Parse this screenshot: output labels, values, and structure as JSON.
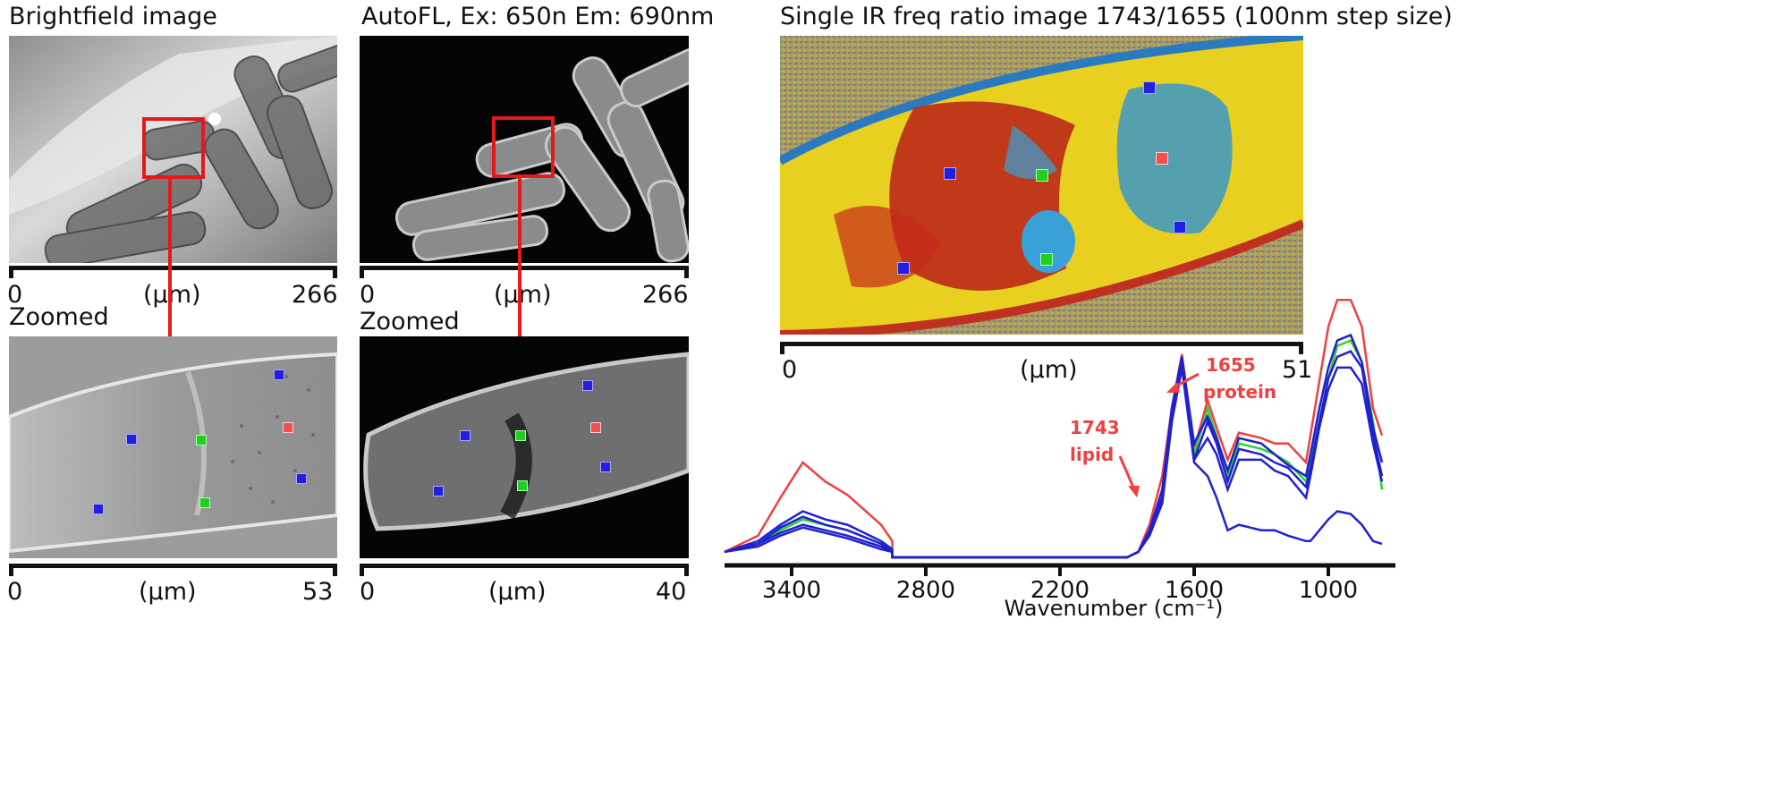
{
  "panels": {
    "brightfield": {
      "title": "Brightfield image",
      "scale_start": "0",
      "scale_unit": "(µm)",
      "scale_end": "266"
    },
    "autofl": {
      "title": "AutoFL, Ex: 650n Em: 690nm",
      "scale_start": "0",
      "scale_unit": "(µm)",
      "scale_end": "266"
    },
    "brightfield_zoom": {
      "title": "Zoomed",
      "scale_start": "0",
      "scale_unit": "(µm)",
      "scale_end": "53"
    },
    "autofl_zoom": {
      "title": "Zoomed",
      "scale_start": "0",
      "scale_unit": "(µm)",
      "scale_end": "40"
    },
    "ir_ratio": {
      "title": "Single IR freq ratio image 1743/1655 (100nm step size)",
      "scale_start": "0",
      "scale_unit": "(µm)",
      "scale_end": "51"
    }
  },
  "colors": {
    "red_box": "#e41a1a",
    "marker_blue": "#2020e0",
    "marker_green": "#20d020",
    "marker_red": "#f05050",
    "spectrum_red": "#f04040",
    "spectrum_green": "#30d030",
    "spectrum_blue": "#2020d0"
  },
  "chart_data": {
    "type": "line",
    "title": "",
    "xlabel": "Wavenumber (cm⁻¹)",
    "ylabel": "",
    "x_reversed": true,
    "xlim": [
      3700,
      700
    ],
    "x_ticks": [
      "3400",
      "2800",
      "2200",
      "1600",
      "1000"
    ],
    "annotations": [
      {
        "label_line1": "1743",
        "label_line2": "lipid",
        "x": 1743
      },
      {
        "label_line1": "1655",
        "label_line2": "protein",
        "x": 1655
      }
    ],
    "series": [
      {
        "color": "red",
        "x": [
          3700,
          3550,
          3450,
          3350,
          3250,
          3150,
          3000,
          2950,
          2950,
          1900,
          1850,
          1800,
          1743,
          1700,
          1655,
          1600,
          1540,
          1500,
          1450,
          1400,
          1300,
          1240,
          1180,
          1100,
          1080,
          1040,
          1000,
          960,
          900,
          850,
          800,
          760
        ],
        "y": [
          0.02,
          0.08,
          0.22,
          0.35,
          0.28,
          0.23,
          0.12,
          0.06,
          0.0,
          0.0,
          0.02,
          0.12,
          0.3,
          0.55,
          0.75,
          0.4,
          0.58,
          0.48,
          0.36,
          0.46,
          0.44,
          0.42,
          0.42,
          0.35,
          0.45,
          0.65,
          0.85,
          0.95,
          0.95,
          0.85,
          0.55,
          0.45
        ]
      },
      {
        "color": "green",
        "x": [
          3700,
          3550,
          3450,
          3350,
          3250,
          3150,
          3000,
          2950,
          2950,
          1900,
          1850,
          1800,
          1743,
          1700,
          1655,
          1600,
          1540,
          1500,
          1450,
          1400,
          1300,
          1240,
          1180,
          1100,
          1080,
          1040,
          1000,
          960,
          900,
          850,
          800,
          760
        ],
        "y": [
          0.02,
          0.05,
          0.1,
          0.14,
          0.12,
          0.1,
          0.05,
          0.03,
          0.0,
          0.0,
          0.02,
          0.1,
          0.22,
          0.52,
          0.72,
          0.38,
          0.55,
          0.45,
          0.3,
          0.42,
          0.4,
          0.38,
          0.35,
          0.28,
          0.35,
          0.5,
          0.66,
          0.78,
          0.8,
          0.72,
          0.5,
          0.25
        ]
      },
      {
        "color": "blue",
        "x": [
          3700,
          3550,
          3450,
          3350,
          3250,
          3150,
          3000,
          2950,
          2950,
          1900,
          1850,
          1800,
          1743,
          1700,
          1655,
          1600,
          1540,
          1500,
          1450,
          1400,
          1300,
          1240,
          1180,
          1100,
          1080,
          1040,
          1000,
          960,
          900,
          850,
          800,
          760
        ],
        "y": [
          0.02,
          0.06,
          0.12,
          0.17,
          0.14,
          0.12,
          0.06,
          0.03,
          0.0,
          0.0,
          0.02,
          0.1,
          0.25,
          0.55,
          0.74,
          0.42,
          0.52,
          0.44,
          0.32,
          0.44,
          0.42,
          0.38,
          0.34,
          0.3,
          0.38,
          0.55,
          0.7,
          0.8,
          0.82,
          0.72,
          0.48,
          0.35
        ]
      },
      {
        "color": "blue",
        "x": [
          3700,
          3550,
          3450,
          3350,
          3250,
          3150,
          3000,
          2950,
          2950,
          1900,
          1850,
          1800,
          1743,
          1700,
          1655,
          1600,
          1540,
          1500,
          1450,
          1400,
          1300,
          1240,
          1180,
          1100,
          1080,
          1040,
          1000,
          960,
          900,
          850,
          800,
          760
        ],
        "y": [
          0.02,
          0.05,
          0.09,
          0.12,
          0.1,
          0.08,
          0.04,
          0.02,
          0.0,
          0.0,
          0.02,
          0.08,
          0.2,
          0.5,
          0.7,
          0.36,
          0.5,
          0.42,
          0.28,
          0.4,
          0.38,
          0.35,
          0.33,
          0.26,
          0.33,
          0.5,
          0.66,
          0.74,
          0.76,
          0.7,
          0.45,
          0.3
        ]
      },
      {
        "color": "blue",
        "x": [
          3700,
          3550,
          3450,
          3350,
          3250,
          3150,
          3000,
          2950,
          2950,
          1900,
          1850,
          1800,
          1743,
          1700,
          1655,
          1600,
          1540,
          1500,
          1450,
          1400,
          1300,
          1240,
          1180,
          1100,
          1080,
          1040,
          1000,
          960,
          900,
          850,
          800,
          760
        ],
        "y": [
          0.02,
          0.05,
          0.11,
          0.15,
          0.12,
          0.1,
          0.05,
          0.02,
          0.0,
          0.0,
          0.02,
          0.09,
          0.22,
          0.5,
          0.72,
          0.36,
          0.44,
          0.38,
          0.25,
          0.36,
          0.36,
          0.32,
          0.3,
          0.22,
          0.3,
          0.48,
          0.62,
          0.7,
          0.7,
          0.64,
          0.42,
          0.28
        ]
      },
      {
        "color": "blue",
        "x": [
          3700,
          3550,
          3450,
          3350,
          3250,
          3150,
          3000,
          2950,
          2950,
          1900,
          1850,
          1800,
          1743,
          1700,
          1655,
          1600,
          1540,
          1500,
          1450,
          1400,
          1300,
          1240,
          1180,
          1100,
          1080,
          1040,
          1000,
          960,
          900,
          850,
          800,
          760
        ],
        "y": [
          0.02,
          0.04,
          0.08,
          0.11,
          0.09,
          0.07,
          0.03,
          0.02,
          0.0,
          0.0,
          0.02,
          0.08,
          0.2,
          0.5,
          0.7,
          0.35,
          0.3,
          0.22,
          0.1,
          0.12,
          0.1,
          0.1,
          0.08,
          0.06,
          0.06,
          0.1,
          0.14,
          0.17,
          0.16,
          0.12,
          0.06,
          0.05
        ]
      }
    ]
  }
}
